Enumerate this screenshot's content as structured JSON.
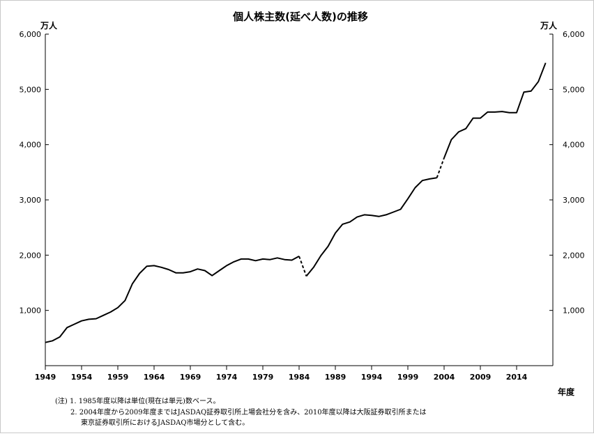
{
  "chart_data": {
    "type": "line",
    "title": "個人株主数(延べ人数)の推移",
    "y_unit_left": "万人",
    "y_unit_right": "万人",
    "xlabel": "年度",
    "ylim": [
      0,
      6000
    ],
    "xlim": [
      1949,
      2019
    ],
    "y_ticks": [
      "1,000",
      "2,000",
      "3,000",
      "4,000",
      "5,000",
      "6,000"
    ],
    "y_tick_values": [
      1000,
      2000,
      3000,
      4000,
      5000,
      6000
    ],
    "x_ticks": [
      "1949",
      "1954",
      "1959",
      "1964",
      "1969",
      "1974",
      "1979",
      "1984",
      "1989",
      "1994",
      "1999",
      "2004",
      "2009",
      "2014"
    ],
    "x_tick_values": [
      1949,
      1954,
      1959,
      1964,
      1969,
      1974,
      1979,
      1984,
      1989,
      1994,
      1999,
      2004,
      2009,
      2014
    ],
    "grid": false,
    "series": [
      {
        "x": [
          1949,
          1950,
          1951,
          1952,
          1953,
          1954,
          1955,
          1956,
          1957,
          1958,
          1959,
          1960,
          1961,
          1962,
          1963,
          1964,
          1965,
          1966,
          1967,
          1968,
          1969,
          1970,
          1971,
          1972,
          1973,
          1974,
          1975,
          1976,
          1977,
          1978,
          1979,
          1980,
          1981,
          1982,
          1983,
          1984,
          1985,
          1986,
          1987,
          1988,
          1989,
          1990,
          1991,
          1992,
          1993,
          1994,
          1995,
          1996,
          1997,
          1998,
          1999,
          2000,
          2001,
          2002,
          2003,
          2004,
          2005,
          2006,
          2007,
          2008,
          2009,
          2010,
          2011,
          2012,
          2013,
          2014,
          2015,
          2016,
          2017,
          2018
        ],
        "values": [
          420,
          450,
          520,
          690,
          750,
          810,
          840,
          850,
          910,
          970,
          1050,
          1180,
          1480,
          1670,
          1800,
          1810,
          1780,
          1740,
          1680,
          1680,
          1700,
          1750,
          1720,
          1630,
          1720,
          1810,
          1880,
          1930,
          1930,
          1900,
          1930,
          1920,
          1950,
          1920,
          1910,
          1980,
          1620,
          1780,
          1990,
          2160,
          2400,
          2560,
          2600,
          2690,
          2730,
          2720,
          2700,
          2730,
          2780,
          2830,
          3020,
          3220,
          3350,
          3380,
          3400,
          3760,
          4090,
          4230,
          4290,
          4480,
          4480,
          4590,
          4590,
          4600,
          4580,
          4580,
          4950,
          4970,
          5140,
          5480
        ],
        "dashed_segments": [
          [
            1984,
            1985
          ],
          [
            2003,
            2004
          ]
        ]
      }
    ],
    "notes": {
      "n1": "(注) 1. 1985年度以降は単位(現在は単元)数ベース。",
      "n2": "2. 2004年度から2009年度まではJASDAQ証券取引所上場会社分を含み、2010年度以降は大阪証券取引所または",
      "n3": "東京証券取引所におけるJASDAQ市場分として含む。"
    }
  }
}
